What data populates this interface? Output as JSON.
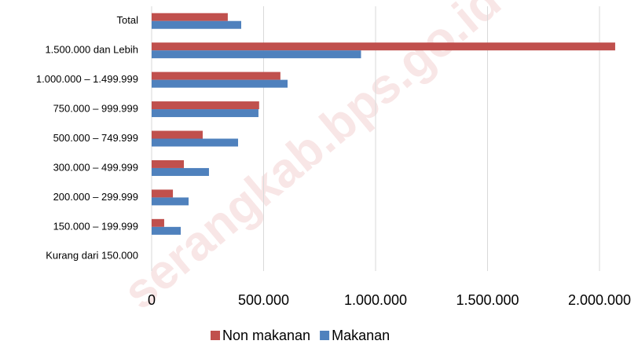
{
  "chart_data": {
    "type": "bar",
    "orientation": "horizontal",
    "watermark": "serangkab.bps.go.id",
    "categories": [
      "Total",
      "1.500.000 dan Lebih",
      "1.000.000 – 1.499.999",
      "750.000 – 999.999",
      "500.000 – 749.999",
      "300.000 – 499.999",
      "200.000 – 299.999",
      "150.000 – 199.999",
      "Kurang dari 150.000"
    ],
    "series": [
      {
        "name": "Non makanan",
        "color": "#c0504d",
        "values": [
          340000,
          2070000,
          575000,
          480000,
          228000,
          144000,
          95000,
          56000,
          0
        ]
      },
      {
        "name": "Makanan",
        "color": "#4f81bd",
        "values": [
          400000,
          935000,
          607000,
          477000,
          386000,
          256000,
          165000,
          130000,
          0
        ]
      }
    ],
    "xlim": [
      0,
      2100000
    ],
    "xticks": [
      0,
      {
        "value": 500000,
        "label": "500.000"
      },
      {
        "value": 1000000,
        "label": "1.000.000"
      },
      {
        "value": 1500000,
        "label": "1.500.000"
      },
      {
        "value": 2000000,
        "label": "2.000.000"
      }
    ],
    "grid": true,
    "legend": "bottom"
  }
}
